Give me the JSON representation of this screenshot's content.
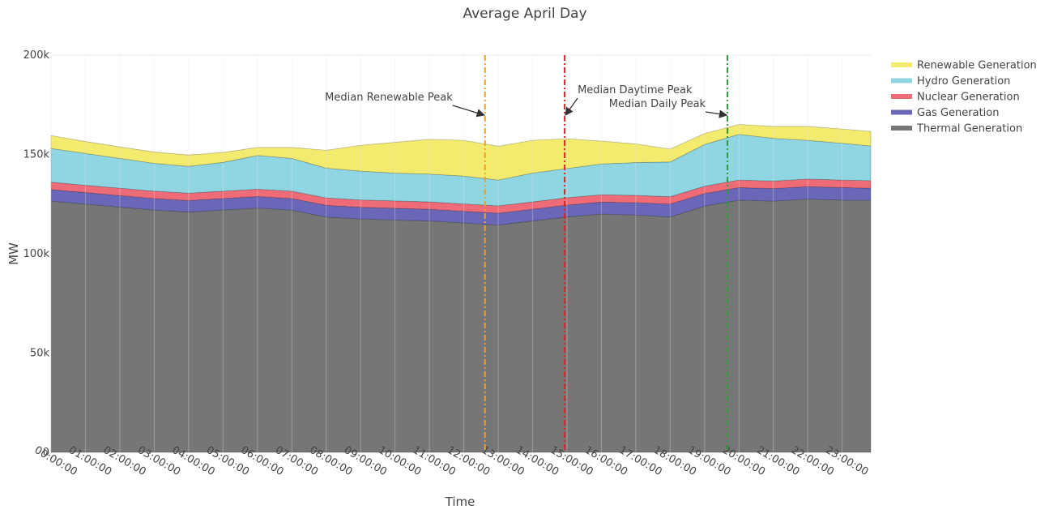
{
  "chart_data": {
    "type": "stacked-area",
    "title": "Average April Day",
    "x_label": "Time",
    "y_label": "MW",
    "x": [
      "00:00:00",
      "01:00:00",
      "02:00:00",
      "03:00:00",
      "04:00:00",
      "05:00:00",
      "06:00:00",
      "07:00:00",
      "08:00:00",
      "09:00:00",
      "10:00:00",
      "11:00:00",
      "12:00:00",
      "13:00:00",
      "14:00:00",
      "15:00:00",
      "16:00:00",
      "17:00:00",
      "18:00:00",
      "19:00:00",
      "20:00:00",
      "21:00:00",
      "22:00:00",
      "23:00:00",
      "23:50:00"
    ],
    "xlim": [
      "00:00:00",
      "23:50:00"
    ],
    "xticks": [
      "00:00:00",
      "01:00:00",
      "02:00:00",
      "03:00:00",
      "04:00:00",
      "05:00:00",
      "06:00:00",
      "07:00:00",
      "08:00:00",
      "09:00:00",
      "10:00:00",
      "11:00:00",
      "12:00:00",
      "13:00:00",
      "14:00:00",
      "15:00:00",
      "16:00:00",
      "17:00:00",
      "18:00:00",
      "19:00:00",
      "20:00:00",
      "21:00:00",
      "22:00:00",
      "23:00:00"
    ],
    "ylim": [
      0,
      200000
    ],
    "yticks": [
      0,
      {
        "value": 50000,
        "label": "50k"
      },
      {
        "value": 100000,
        "label": "100k"
      },
      {
        "value": 150000,
        "label": "150k"
      },
      {
        "value": 200000,
        "label": "200k"
      }
    ],
    "grid": true,
    "legend": "top-right",
    "series": [
      {
        "name": "Thermal Generation",
        "color": "#767676",
        "values": [
          126500,
          125000,
          123500,
          122000,
          121000,
          122000,
          123000,
          122000,
          118500,
          117500,
          117000,
          116500,
          115500,
          114500,
          116500,
          118500,
          120000,
          119500,
          118500,
          124000,
          127000,
          126500,
          127500,
          127000,
          127000
        ]
      },
      {
        "name": "Gas Generation",
        "color": "#6a67b8",
        "values": [
          5800,
          5800,
          5800,
          5800,
          5800,
          5800,
          5800,
          5800,
          5900,
          5900,
          5900,
          5900,
          5900,
          5900,
          5900,
          6000,
          6000,
          6200,
          6500,
          6300,
          6300,
          6300,
          6300,
          6300,
          6000
        ]
      },
      {
        "name": "Nuclear Generation",
        "color": "#ee6b78",
        "values": [
          3700,
          3700,
          3700,
          3700,
          3700,
          3700,
          3700,
          3700,
          3700,
          3700,
          3700,
          3700,
          3700,
          3700,
          3700,
          3700,
          3700,
          3700,
          3700,
          3700,
          3800,
          3800,
          3800,
          3800,
          3800
        ]
      },
      {
        "name": "Hydro Generation",
        "color": "#8fd6e2",
        "values": [
          17000,
          16000,
          15000,
          14000,
          13500,
          14500,
          17000,
          16500,
          15000,
          14500,
          14000,
          14000,
          14000,
          13000,
          14500,
          14700,
          15500,
          16500,
          17500,
          21000,
          23000,
          21500,
          19500,
          18500,
          17500
        ]
      },
      {
        "name": "Renewable Generation",
        "color": "#f3eb6e",
        "values": [
          6500,
          6000,
          5800,
          5700,
          5700,
          5000,
          4000,
          5500,
          9000,
          13000,
          15500,
          17500,
          18000,
          17000,
          16500,
          15000,
          11500,
          9400,
          6500,
          5500,
          5000,
          6000,
          7000,
          7200,
          7300
        ]
      }
    ],
    "annotations": [
      {
        "text": "Median Renewable Peak",
        "x": "12:37:00",
        "color": "#f0a020"
      },
      {
        "text": "Median Daytime Peak",
        "x": "14:56:00",
        "color": "#d62728"
      },
      {
        "text": "Median Daily Peak",
        "x": "19:40:00",
        "color": "#2e9a3a"
      }
    ]
  }
}
